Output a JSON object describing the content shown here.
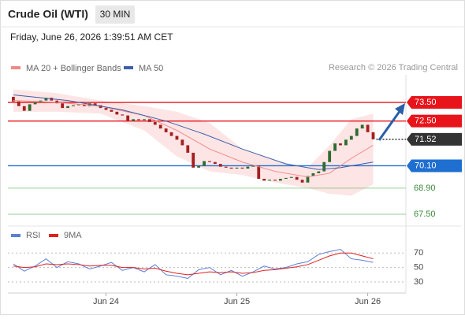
{
  "header": {
    "title": "Crude Oil (WTI)",
    "interval": "30 MIN",
    "datetime": "Friday, June 26, 2026 1:39:51 AM CET",
    "credit": "Research © 2026 Trading Central"
  },
  "chart_data": [
    {
      "type": "candlestick",
      "xlim": [
        -1,
        72
      ],
      "ylim": [
        66.95,
        74.98
      ],
      "xticks": [
        {
          "value": 17,
          "label": "Jun 24"
        },
        {
          "value": 41,
          "label": "Jun 25"
        },
        {
          "value": 65,
          "label": "Jun 26"
        }
      ],
      "up_color": "#2e6b2e",
      "down_color": "#a32020",
      "open": [
        73.8,
        73.55,
        73.3,
        73.05,
        73.4,
        73.5,
        73.6,
        73.75,
        73.6,
        73.45,
        73.2,
        73.3,
        73.35,
        73.4,
        73.3,
        73.45,
        73.35,
        73.2,
        73.1,
        73.0,
        72.85,
        72.8,
        72.5,
        72.6,
        72.55,
        72.6,
        72.45,
        72.3,
        72.1,
        71.9,
        71.7,
        71.5,
        71.2,
        70.8,
        70.0,
        70.1,
        70.35,
        70.3,
        70.2,
        70.05,
        70.0,
        69.95,
        70.0,
        69.95,
        70.05,
        70.1,
        69.4,
        69.3,
        69.35,
        69.3,
        69.4,
        69.45,
        69.5,
        69.35,
        69.2,
        69.55,
        69.7,
        69.8,
        70.3,
        70.9,
        71.3,
        71.2,
        71.5,
        71.7,
        72.1,
        72.3,
        71.9
      ],
      "close": [
        73.55,
        73.3,
        73.05,
        73.4,
        73.5,
        73.6,
        73.75,
        73.6,
        73.45,
        73.2,
        73.3,
        73.35,
        73.4,
        73.3,
        73.45,
        73.35,
        73.2,
        73.1,
        73.0,
        72.85,
        72.8,
        72.5,
        72.6,
        72.55,
        72.6,
        72.45,
        72.3,
        72.1,
        71.9,
        71.7,
        71.5,
        71.2,
        70.8,
        70.0,
        70.1,
        70.35,
        70.3,
        70.2,
        70.05,
        70.0,
        69.95,
        70.0,
        69.95,
        70.05,
        70.1,
        69.4,
        69.3,
        69.35,
        69.3,
        69.4,
        69.45,
        69.5,
        69.35,
        69.2,
        69.55,
        69.7,
        69.8,
        70.3,
        70.9,
        71.3,
        71.2,
        71.5,
        71.7,
        72.1,
        72.3,
        71.9,
        71.52
      ],
      "series": [
        {
          "name": "MA 20 + Bollinger Bands",
          "color": "#f08a8a",
          "x": [
            0,
            8,
            16,
            24,
            30,
            36,
            42,
            48,
            54,
            58,
            62,
            66
          ],
          "values": [
            73.6,
            73.5,
            73.3,
            72.8,
            72.0,
            71.0,
            70.3,
            69.8,
            69.5,
            69.7,
            70.5,
            71.2
          ],
          "upper": [
            74.2,
            74.0,
            73.6,
            73.3,
            73.0,
            72.4,
            71.0,
            70.4,
            70.0,
            71.2,
            72.6,
            72.9
          ],
          "lower": [
            73.0,
            73.0,
            72.9,
            72.0,
            70.6,
            69.8,
            69.6,
            69.2,
            68.9,
            68.6,
            68.5,
            69.1
          ]
        },
        {
          "name": "MA 50",
          "color": "#3d5fa8",
          "x": [
            0,
            10,
            20,
            28,
            35,
            42,
            50,
            56,
            60,
            66
          ],
          "values": [
            73.9,
            73.6,
            73.1,
            72.5,
            71.8,
            71.0,
            70.2,
            69.9,
            70.0,
            70.3
          ]
        }
      ],
      "levels": [
        {
          "value": 73.5,
          "label": "73.50",
          "color": "#e8141b",
          "style": "box"
        },
        {
          "value": 72.5,
          "label": "72.50",
          "color": "#e8141b",
          "style": "box"
        },
        {
          "value": 71.52,
          "label": "71.52",
          "color": "#333333",
          "style": "current"
        },
        {
          "value": 70.1,
          "label": "70.10",
          "color": "#1f6fd1",
          "style": "box"
        },
        {
          "value": 68.9,
          "label": "68.90",
          "color": "#7cc47c",
          "style": "text"
        },
        {
          "value": 67.5,
          "label": "67.50",
          "color": "#7cc47c",
          "style": "text"
        }
      ]
    },
    {
      "type": "line",
      "xlim": [
        -1,
        72
      ],
      "ylim": [
        17,
        80
      ],
      "yticks": [
        30,
        50,
        70
      ],
      "series": [
        {
          "name": "RSI",
          "color": "#5b7fd6",
          "x": [
            0,
            2,
            4,
            6,
            8,
            10,
            12,
            14,
            16,
            18,
            20,
            22,
            24,
            26,
            28,
            30,
            32,
            34,
            36,
            38,
            40,
            42,
            44,
            46,
            48,
            50,
            52,
            54,
            56,
            58,
            60,
            62,
            64,
            66
          ],
          "values": [
            55,
            45,
            52,
            62,
            50,
            58,
            55,
            48,
            52,
            57,
            46,
            50,
            44,
            54,
            40,
            38,
            35,
            47,
            50,
            40,
            46,
            38,
            44,
            52,
            48,
            50,
            55,
            58,
            68,
            72,
            75,
            62,
            60,
            57
          ]
        },
        {
          "name": "9MA",
          "color": "#e02020",
          "x": [
            0,
            2,
            4,
            6,
            8,
            10,
            12,
            14,
            16,
            18,
            20,
            22,
            24,
            26,
            28,
            30,
            32,
            34,
            36,
            38,
            40,
            42,
            44,
            46,
            48,
            50,
            52,
            54,
            56,
            58,
            60,
            62,
            64,
            66
          ],
          "values": [
            52,
            50,
            51,
            55,
            54,
            55,
            54,
            52,
            53,
            53,
            50,
            50,
            48,
            49,
            45,
            42,
            40,
            42,
            44,
            43,
            44,
            42,
            43,
            46,
            47,
            49,
            51,
            54,
            60,
            66,
            70,
            70,
            66,
            62
          ]
        }
      ]
    }
  ]
}
